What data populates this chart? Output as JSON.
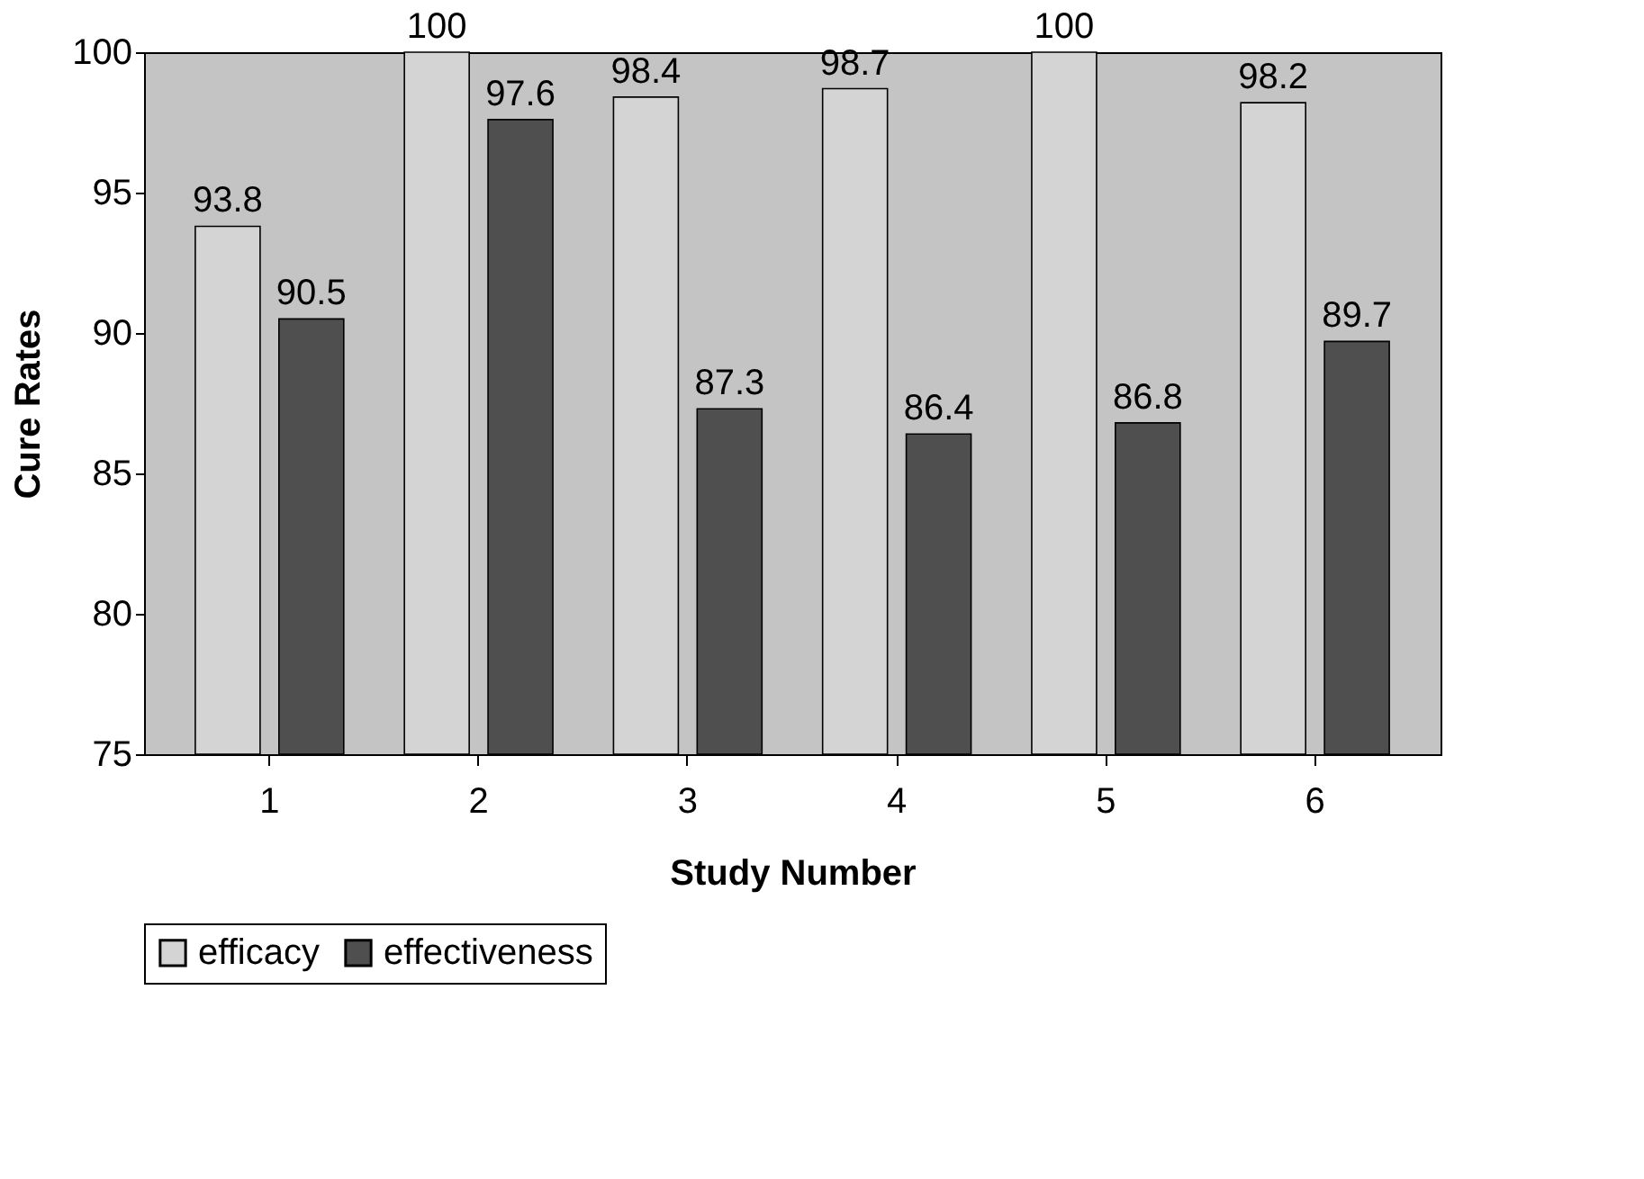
{
  "chart_data": {
    "type": "bar",
    "xlabel": "Study Number",
    "ylabel": "Cure Rates",
    "categories": [
      "1",
      "2",
      "3",
      "4",
      "5",
      "6"
    ],
    "series": [
      {
        "name": "efficacy",
        "color": "#d4d4d4",
        "values": [
          93.8,
          100,
          98.4,
          98.7,
          100,
          98.2
        ]
      },
      {
        "name": "effectiveness",
        "color": "#4f4f4f",
        "values": [
          90.5,
          97.6,
          87.3,
          86.4,
          86.8,
          89.7
        ]
      }
    ],
    "ylim": [
      75,
      100
    ],
    "yticks": [
      75,
      80,
      85,
      90,
      95,
      100
    ],
    "grid": false,
    "legend": "bottom",
    "data_labels": true
  }
}
